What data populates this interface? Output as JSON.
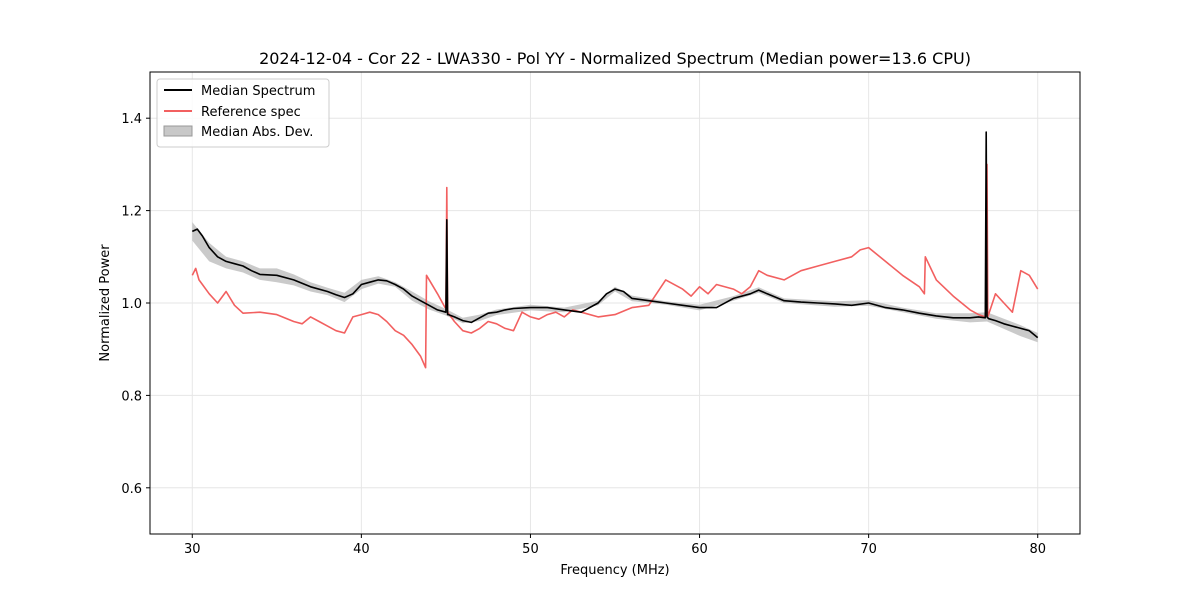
{
  "chart_data": {
    "type": "line",
    "title": "2024-12-04 - Cor 22 - LWA330 - Pol YY - Normalized Spectrum (Median power=13.6 CPU)",
    "xlabel": "Frequency (MHz)",
    "ylabel": "Normalized Power",
    "xlim": [
      27.5,
      82.5
    ],
    "ylim": [
      0.5,
      1.5
    ],
    "xticks": [
      30,
      40,
      50,
      60,
      70,
      80
    ],
    "yticks": [
      0.6,
      0.8,
      1.0,
      1.2,
      1.4
    ],
    "xtick_labels": [
      "30",
      "40",
      "50",
      "60",
      "70",
      "80"
    ],
    "ytick_labels": [
      "0.6",
      "0.8",
      "1.0",
      "1.2",
      "1.4"
    ],
    "grid": true,
    "legend_position": "top-left",
    "legend": [
      "Median Spectrum",
      "Reference spec",
      "Median Abs. Dev."
    ],
    "colors": {
      "median": "#000000",
      "reference": "#f26060",
      "mad_fill": "#b8b8b8",
      "mad_edge": "#999999",
      "grid": "#e6e6e6"
    },
    "series": [
      {
        "name": "Median Spectrum",
        "x": [
          30,
          30.3,
          30.6,
          31,
          31.5,
          32,
          32.5,
          33,
          33.5,
          34,
          35,
          36,
          37,
          38,
          38.5,
          39,
          39.5,
          40,
          40.5,
          41,
          41.5,
          42,
          42.5,
          43,
          43.5,
          44,
          44.5,
          45,
          45.05,
          45.1,
          45.15,
          45.5,
          46,
          46.5,
          47,
          47.5,
          48,
          48.5,
          49,
          50,
          51,
          52,
          53,
          54,
          54.5,
          55,
          55.5,
          56,
          57,
          58,
          59,
          60,
          61,
          62,
          63,
          63.5,
          64,
          65,
          66,
          67,
          68,
          69,
          70,
          71,
          72,
          73,
          74,
          75,
          76,
          76.5,
          76.9,
          76.95,
          77,
          77.05,
          77.1,
          77.5,
          78,
          78.5,
          79,
          79.5,
          80
        ],
        "y": [
          1.155,
          1.16,
          1.145,
          1.12,
          1.1,
          1.09,
          1.085,
          1.08,
          1.07,
          1.062,
          1.06,
          1.05,
          1.035,
          1.025,
          1.018,
          1.012,
          1.02,
          1.04,
          1.045,
          1.05,
          1.048,
          1.04,
          1.03,
          1.015,
          1.005,
          0.995,
          0.985,
          0.98,
          1.18,
          0.975,
          0.975,
          0.97,
          0.962,
          0.958,
          0.968,
          0.978,
          0.98,
          0.985,
          0.988,
          0.99,
          0.99,
          0.985,
          0.98,
          1.0,
          1.02,
          1.03,
          1.025,
          1.01,
          1.005,
          1.0,
          0.995,
          0.99,
          0.99,
          1.01,
          1.02,
          1.028,
          1.02,
          1.005,
          1.002,
          1.0,
          0.998,
          0.995,
          1.0,
          0.99,
          0.985,
          0.978,
          0.972,
          0.968,
          0.968,
          0.97,
          0.968,
          1.37,
          0.97,
          0.968,
          0.966,
          0.962,
          0.955,
          0.95,
          0.945,
          0.94,
          0.925
        ]
      },
      {
        "name": "Reference spec",
        "x": [
          30,
          30.2,
          30.4,
          30.6,
          31,
          31.5,
          32,
          32.5,
          33,
          34,
          35,
          36,
          36.5,
          37,
          37.5,
          38,
          38.5,
          39,
          39.5,
          40,
          40.5,
          41,
          41.5,
          42,
          42.5,
          43,
          43.5,
          43.8,
          43.85,
          44.5,
          44.95,
          45,
          45.05,
          45.1,
          45.5,
          46,
          46.5,
          47,
          47.5,
          48,
          48.5,
          49,
          49.5,
          50,
          50.5,
          51,
          51.5,
          52,
          52.5,
          53,
          54,
          55,
          56,
          57,
          58,
          59,
          59.5,
          60,
          60.5,
          61,
          62,
          62.5,
          63,
          63.5,
          64,
          65,
          66,
          67,
          68,
          69,
          69.5,
          70,
          71,
          72,
          73,
          73.3,
          73.35,
          74,
          75,
          76,
          76.5,
          76.9,
          76.95,
          77,
          77.05,
          77.5,
          78,
          78.5,
          79,
          79.5,
          80
        ],
        "y": [
          1.06,
          1.075,
          1.05,
          1.04,
          1.02,
          1.0,
          1.025,
          0.995,
          0.978,
          0.98,
          0.975,
          0.96,
          0.955,
          0.97,
          0.96,
          0.95,
          0.94,
          0.935,
          0.97,
          0.975,
          0.98,
          0.975,
          0.96,
          0.94,
          0.93,
          0.91,
          0.885,
          0.86,
          1.06,
          1.02,
          0.99,
          0.99,
          1.25,
          0.98,
          0.96,
          0.94,
          0.935,
          0.945,
          0.96,
          0.955,
          0.945,
          0.94,
          0.98,
          0.97,
          0.965,
          0.975,
          0.98,
          0.97,
          0.985,
          0.98,
          0.97,
          0.975,
          0.99,
          0.995,
          1.05,
          1.03,
          1.015,
          1.035,
          1.02,
          1.04,
          1.03,
          1.02,
          1.035,
          1.07,
          1.06,
          1.05,
          1.07,
          1.08,
          1.09,
          1.1,
          1.115,
          1.12,
          1.09,
          1.06,
          1.035,
          1.02,
          1.1,
          1.05,
          1.015,
          0.985,
          0.975,
          0.97,
          0.98,
          1.3,
          0.97,
          1.02,
          1.0,
          0.98,
          1.07,
          1.06,
          1.03
        ]
      },
      {
        "name": "Median Abs. Dev.",
        "x": [
          30,
          31,
          32,
          33,
          34,
          35,
          36,
          37,
          38,
          39,
          40,
          41,
          42,
          43,
          44,
          45,
          46,
          47,
          48,
          50,
          52,
          54,
          55,
          56,
          58,
          60,
          62,
          63.5,
          65,
          68,
          70,
          72,
          74,
          76,
          77,
          78,
          79,
          80
        ],
        "upper": [
          1.175,
          1.13,
          1.1,
          1.09,
          1.075,
          1.075,
          1.062,
          1.045,
          1.033,
          1.022,
          1.05,
          1.058,
          1.045,
          1.025,
          1.004,
          0.987,
          0.968,
          0.975,
          0.986,
          0.996,
          0.99,
          1.005,
          1.035,
          1.016,
          1.004,
          0.996,
          1.015,
          1.034,
          1.01,
          1.004,
          1.006,
          0.99,
          0.978,
          0.978,
          0.98,
          0.966,
          0.952,
          0.935
        ],
        "lower": [
          1.135,
          1.09,
          1.075,
          1.066,
          1.05,
          1.045,
          1.038,
          1.025,
          1.017,
          1.002,
          1.03,
          1.042,
          1.035,
          1.005,
          0.986,
          0.973,
          0.956,
          0.961,
          0.974,
          0.984,
          0.98,
          0.995,
          1.025,
          1.004,
          0.996,
          0.984,
          1.005,
          1.022,
          1.0,
          0.992,
          0.994,
          0.98,
          0.966,
          0.958,
          0.96,
          0.944,
          0.928,
          0.915
        ]
      }
    ]
  }
}
